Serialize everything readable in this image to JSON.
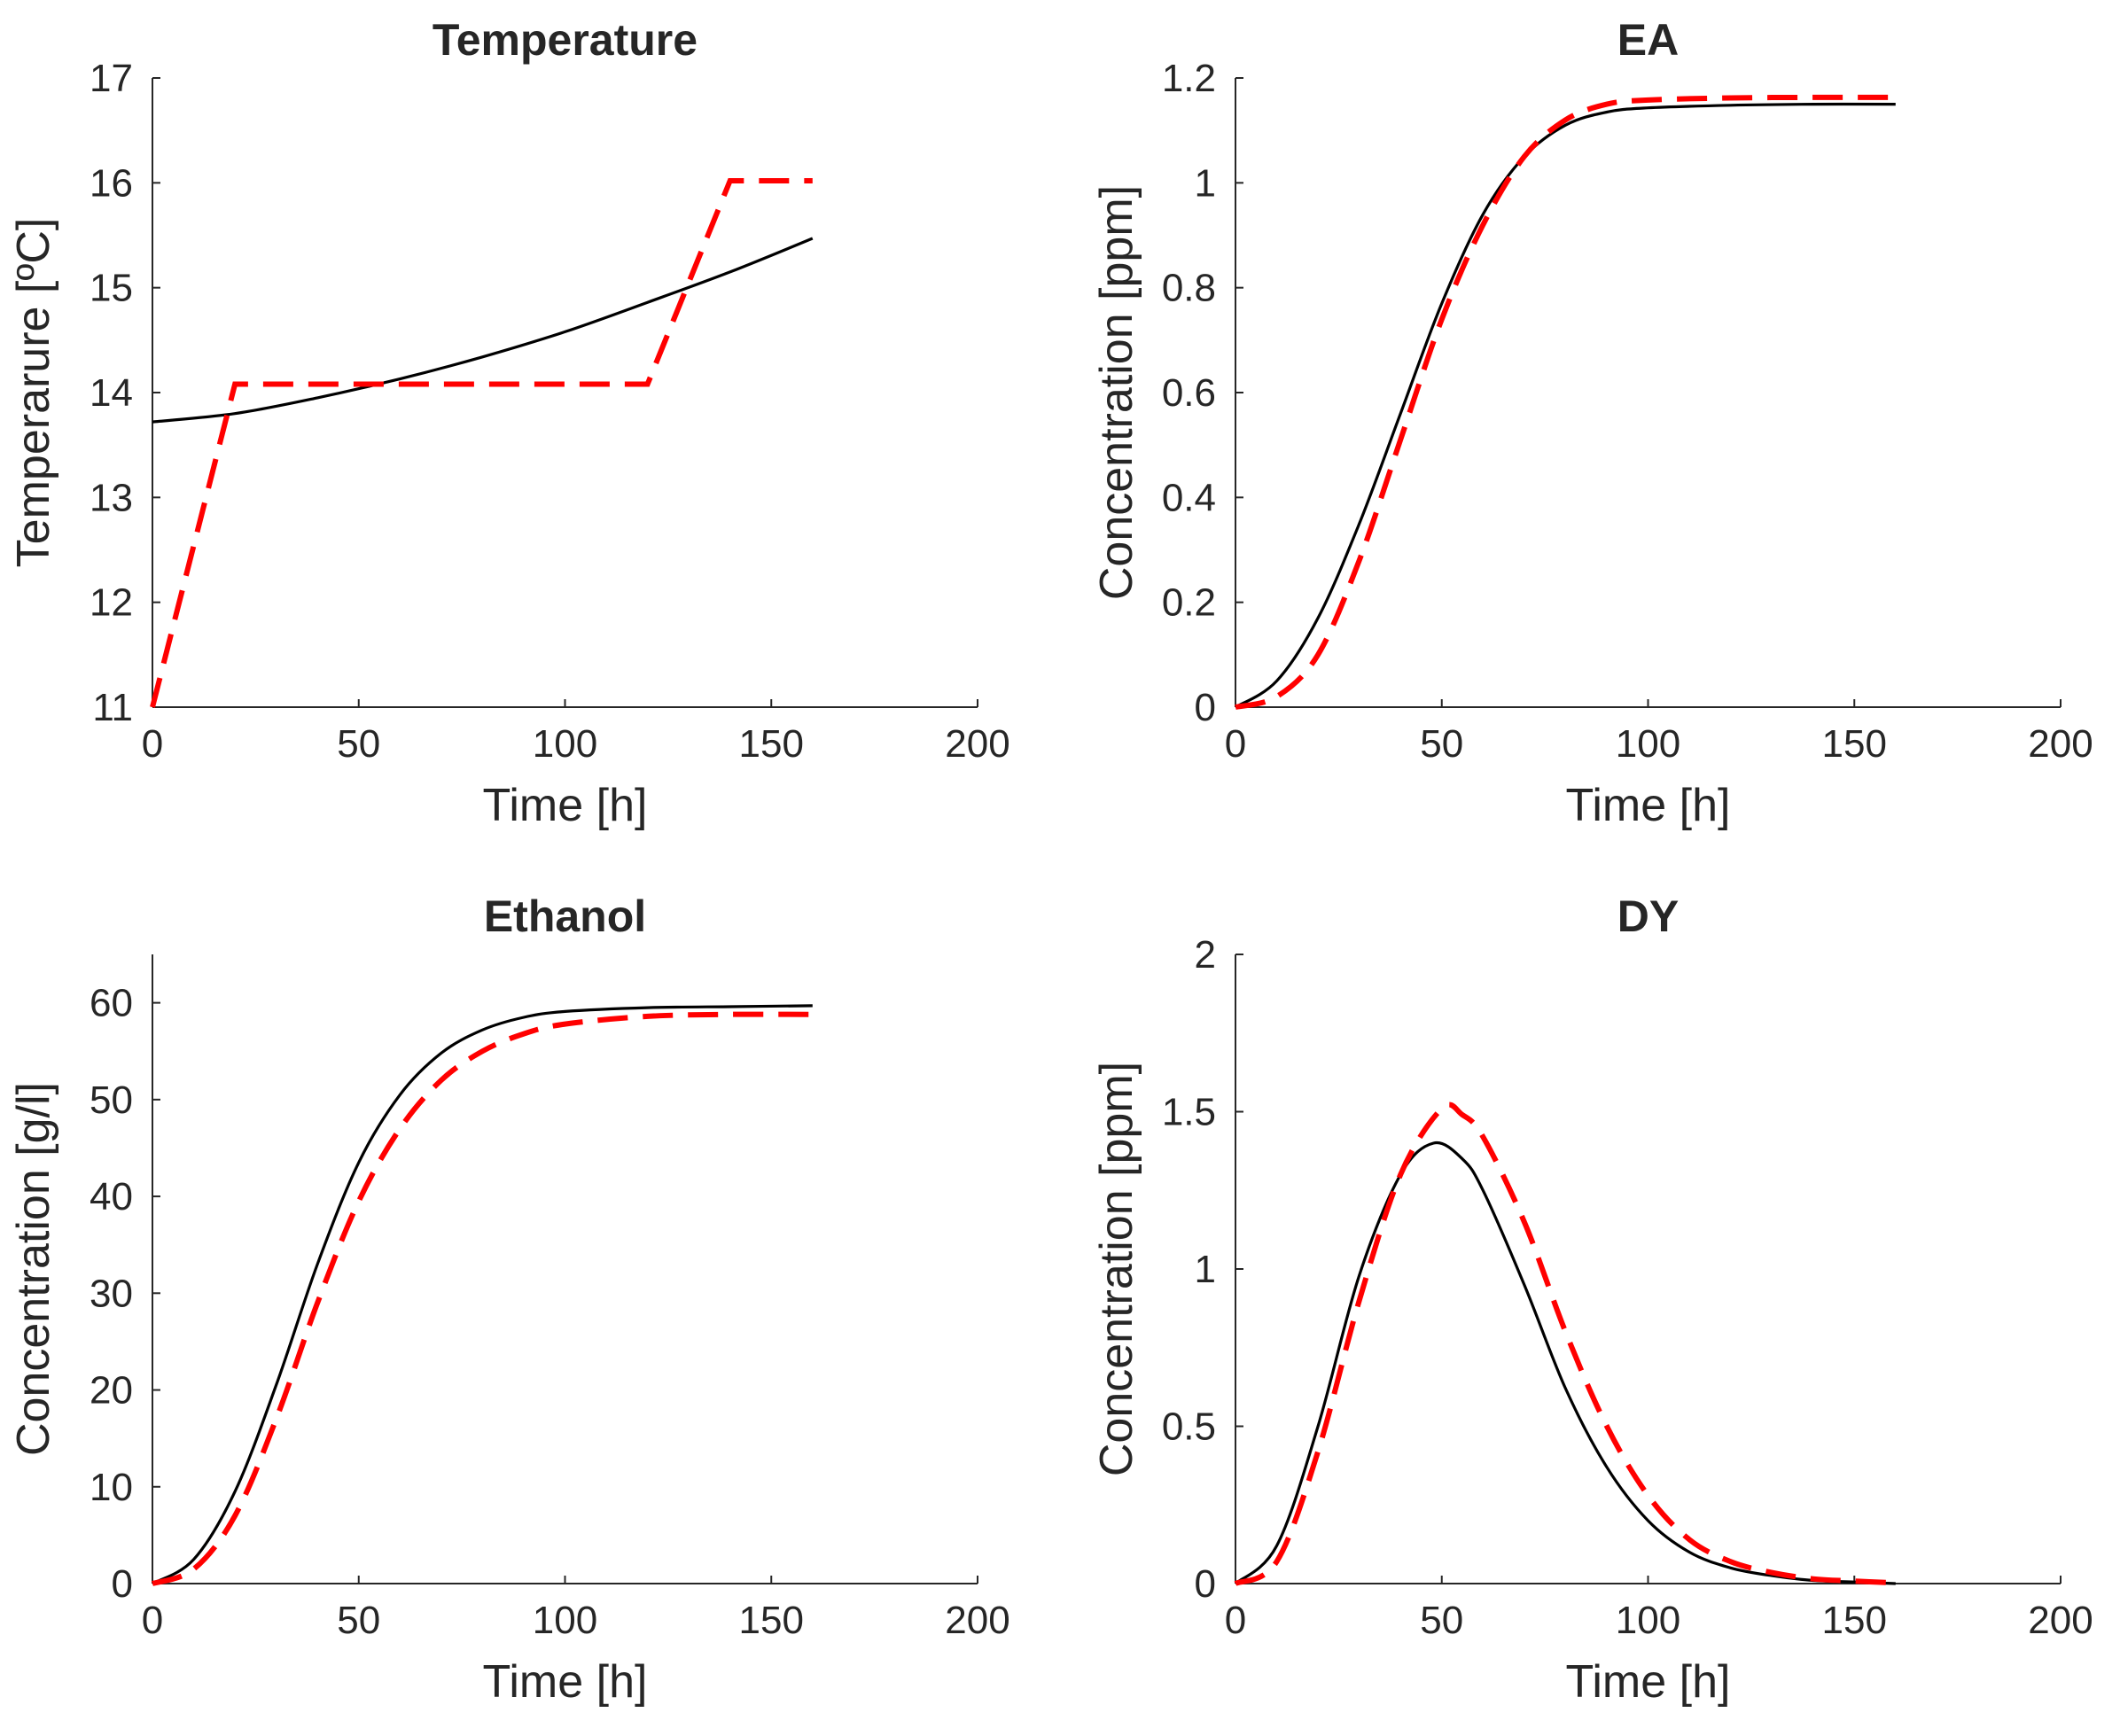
{
  "colors": {
    "background": "#ffffff",
    "text": "#262626",
    "solid_series": "#000000",
    "dashed_series": "#ff0000"
  },
  "chart_data": [
    {
      "id": "temperature",
      "type": "line",
      "title": "Temperature",
      "xlabel": "Time [h]",
      "ylabel": "Temperarure [ºC]",
      "xlim": [
        0,
        200
      ],
      "ylim": [
        11,
        17
      ],
      "xticks": [
        0,
        50,
        100,
        150,
        200
      ],
      "xtick_labels": [
        "0",
        "50",
        "100",
        "150",
        "200"
      ],
      "yticks": [
        11,
        12,
        13,
        14,
        15,
        16,
        17
      ],
      "ytick_labels": [
        "11",
        "12",
        "13",
        "14",
        "15",
        "16",
        "17"
      ],
      "grid": false,
      "series": [
        {
          "name": "solid",
          "style": "solid",
          "color": "#000000",
          "x": [
            0,
            20,
            40,
            60,
            80,
            100,
            120,
            140,
            160
          ],
          "y": [
            13.72,
            13.8,
            13.95,
            14.13,
            14.34,
            14.58,
            14.86,
            15.15,
            15.47
          ]
        },
        {
          "name": "dashed",
          "style": "dashed",
          "color": "#ff0000",
          "x": [
            0,
            20,
            120,
            140,
            160
          ],
          "y": [
            11.0,
            14.08,
            14.08,
            16.02,
            16.02
          ]
        }
      ]
    },
    {
      "id": "ea",
      "type": "line",
      "title": "EA",
      "xlabel": "Time [h]",
      "ylabel": "Concentration [ppm]",
      "xlim": [
        0,
        200
      ],
      "ylim": [
        0,
        1.2
      ],
      "xticks": [
        0,
        50,
        100,
        150,
        200
      ],
      "xtick_labels": [
        "0",
        "50",
        "100",
        "150",
        "200"
      ],
      "yticks": [
        0,
        0.2,
        0.4,
        0.6,
        0.8,
        1.0,
        1.2
      ],
      "ytick_labels": [
        "0",
        "0.2",
        "0.4",
        "0.6",
        "0.8",
        "1",
        "1.2"
      ],
      "grid": false,
      "series": [
        {
          "name": "solid",
          "style": "solid",
          "color": "#000000",
          "x": [
            0,
            10,
            20,
            30,
            40,
            50,
            60,
            70,
            80,
            90,
            100,
            120,
            140,
            160
          ],
          "y": [
            0.0,
            0.05,
            0.17,
            0.35,
            0.56,
            0.77,
            0.94,
            1.05,
            1.11,
            1.135,
            1.143,
            1.148,
            1.15,
            1.15
          ]
        },
        {
          "name": "dashed",
          "style": "dashed",
          "color": "#ff0000",
          "x": [
            0,
            10,
            20,
            30,
            40,
            50,
            60,
            70,
            80,
            90,
            100,
            120,
            140,
            160
          ],
          "y": [
            0.0,
            0.02,
            0.1,
            0.28,
            0.51,
            0.74,
            0.92,
            1.05,
            1.12,
            1.15,
            1.158,
            1.162,
            1.163,
            1.163
          ]
        }
      ]
    },
    {
      "id": "ethanol",
      "type": "line",
      "title": "Ethanol",
      "xlabel": "Time [h]",
      "ylabel": "Concentration [g/l]",
      "xlim": [
        0,
        200
      ],
      "ylim": [
        0,
        65
      ],
      "xticks": [
        0,
        50,
        100,
        150,
        200
      ],
      "xtick_labels": [
        "0",
        "50",
        "100",
        "150",
        "200"
      ],
      "yticks": [
        0,
        10,
        20,
        30,
        40,
        50,
        60
      ],
      "ytick_labels": [
        "0",
        "10",
        "20",
        "30",
        "40",
        "50",
        "60"
      ],
      "grid": false,
      "series": [
        {
          "name": "solid",
          "style": "solid",
          "color": "#000000",
          "x": [
            0,
            10,
            20,
            30,
            40,
            50,
            60,
            70,
            80,
            90,
            100,
            120,
            140,
            160
          ],
          "y": [
            0,
            2.5,
            9.5,
            20.5,
            33,
            43.5,
            50.5,
            54.8,
            57.2,
            58.5,
            59.1,
            59.5,
            59.6,
            59.7
          ]
        },
        {
          "name": "dashed",
          "style": "dashed",
          "color": "#ff0000",
          "x": [
            0,
            10,
            20,
            30,
            40,
            50,
            60,
            70,
            80,
            90,
            100,
            120,
            140,
            160
          ],
          "y": [
            0,
            1.5,
            7,
            17,
            29,
            39.5,
            47,
            52,
            55,
            56.8,
            57.8,
            58.6,
            58.8,
            58.8
          ]
        }
      ]
    },
    {
      "id": "dy",
      "type": "line",
      "title": "DY",
      "xlabel": "Time [h]",
      "ylabel": "Concentration [ppm]",
      "xlim": [
        0,
        200
      ],
      "ylim": [
        0,
        2
      ],
      "xticks": [
        0,
        50,
        100,
        150,
        200
      ],
      "xtick_labels": [
        "0",
        "50",
        "100",
        "150",
        "200"
      ],
      "yticks": [
        0,
        0.5,
        1.0,
        1.5,
        2.0
      ],
      "ytick_labels": [
        "0",
        "0.5",
        "1",
        "1.5",
        "2"
      ],
      "grid": false,
      "series": [
        {
          "name": "solid",
          "style": "solid",
          "color": "#000000",
          "x": [
            0,
            10,
            20,
            30,
            40,
            48,
            55,
            60,
            70,
            80,
            90,
            100,
            110,
            120,
            130,
            140,
            150,
            160
          ],
          "y": [
            0,
            0.12,
            0.5,
            0.98,
            1.3,
            1.4,
            1.35,
            1.25,
            0.95,
            0.62,
            0.37,
            0.2,
            0.1,
            0.05,
            0.025,
            0.01,
            0.005,
            0.0
          ]
        },
        {
          "name": "dashed",
          "style": "dashed",
          "color": "#ff0000",
          "x": [
            0,
            10,
            20,
            30,
            40,
            50,
            55,
            60,
            70,
            80,
            90,
            100,
            110,
            120,
            130,
            140,
            150,
            160
          ],
          "y": [
            0,
            0.07,
            0.42,
            0.9,
            1.3,
            1.51,
            1.49,
            1.42,
            1.15,
            0.8,
            0.5,
            0.28,
            0.14,
            0.07,
            0.035,
            0.015,
            0.008,
            0.002
          ]
        }
      ]
    }
  ]
}
